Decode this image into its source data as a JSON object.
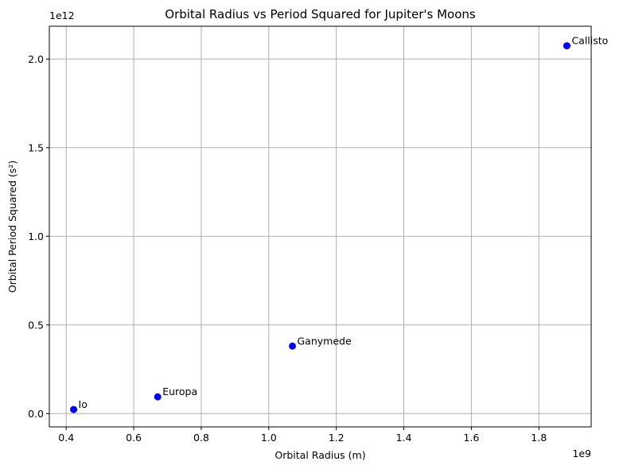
{
  "chart_data": {
    "type": "scatter",
    "title": "Orbital Radius vs Period Squared for Jupiter's Moons",
    "xlabel": "Orbital Radius (m)",
    "ylabel": "Orbital Period Squared (s²)",
    "x_offset_label": "1e9",
    "y_offset_label": "1e12",
    "xlim": [
      0.35,
      1.955
    ],
    "ylim": [
      -0.075,
      2.185
    ],
    "x_ticks": [
      0.4,
      0.6,
      0.8,
      1.0,
      1.2,
      1.4,
      1.6,
      1.8
    ],
    "x_tick_labels": [
      "0.4",
      "0.6",
      "0.8",
      "1.0",
      "1.2",
      "1.4",
      "1.6",
      "1.8"
    ],
    "y_ticks": [
      0.0,
      0.5,
      1.0,
      1.5,
      2.0
    ],
    "y_tick_labels": [
      "0.0",
      "0.5",
      "1.0",
      "1.5",
      "2.0"
    ],
    "grid": true,
    "marker_color": "#0000ff",
    "points": [
      {
        "label": "Io",
        "x": 0.422,
        "y": 0.0233
      },
      {
        "label": "Europa",
        "x": 0.671,
        "y": 0.0943
      },
      {
        "label": "Ganymede",
        "x": 1.07,
        "y": 0.3807
      },
      {
        "label": "Callisto",
        "x": 1.883,
        "y": 2.0748
      }
    ]
  }
}
